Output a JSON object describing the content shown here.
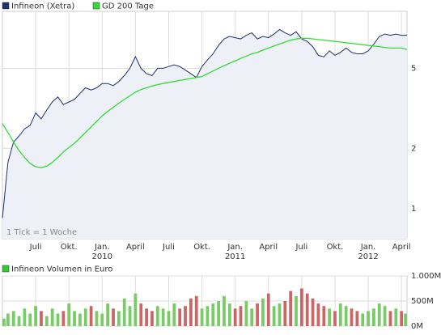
{
  "chart_data": [
    {
      "type": "line",
      "log_scale": true,
      "grid": true,
      "annotation": "1 Tick = 1 Woche",
      "fill_color": "#eef0f8",
      "categories": [
        null,
        null,
        null,
        null,
        null,
        null,
        "Juli",
        null,
        null,
        null,
        null,
        null,
        "Okt.",
        null,
        null,
        null,
        null,
        null,
        "Jan.",
        null,
        null,
        null,
        null,
        null,
        "April",
        null,
        null,
        null,
        null,
        null,
        "Juli",
        null,
        null,
        null,
        null,
        null,
        "Okt.",
        null,
        null,
        null,
        null,
        null,
        "Jan.",
        null,
        null,
        null,
        null,
        null,
        "April",
        null,
        null,
        null,
        null,
        null,
        "Juli",
        null,
        null,
        null,
        null,
        null,
        "Okt.",
        null,
        null,
        null,
        null,
        null,
        "Jan.",
        null,
        null,
        null,
        null,
        null,
        "April",
        null
      ],
      "category_years": [
        null,
        null,
        null,
        null,
        null,
        null,
        null,
        null,
        null,
        null,
        null,
        null,
        null,
        null,
        null,
        null,
        null,
        null,
        "2010",
        null,
        null,
        null,
        null,
        null,
        null,
        null,
        null,
        null,
        null,
        null,
        null,
        null,
        null,
        null,
        null,
        null,
        null,
        null,
        null,
        null,
        null,
        null,
        "2011",
        null,
        null,
        null,
        null,
        null,
        null,
        null,
        null,
        null,
        null,
        null,
        null,
        null,
        null,
        null,
        null,
        null,
        null,
        null,
        null,
        null,
        null,
        null,
        "2012",
        null,
        null,
        null,
        null,
        null,
        null,
        null
      ],
      "series": [
        {
          "name": "Infineon (Xetra)",
          "color": "#1f2f6b",
          "values": [
            0.9,
            1.7,
            2.15,
            2.3,
            2.5,
            2.6,
            3.0,
            2.8,
            3.1,
            3.4,
            3.6,
            3.3,
            3.4,
            3.5,
            3.75,
            4.0,
            3.9,
            4.0,
            4.2,
            4.2,
            4.1,
            4.3,
            4.6,
            5.0,
            5.7,
            5.0,
            4.7,
            4.6,
            5.0,
            5.0,
            5.1,
            5.2,
            5.1,
            4.9,
            4.7,
            4.5,
            5.1,
            5.5,
            5.9,
            6.5,
            7.0,
            7.2,
            7.1,
            7.0,
            7.3,
            7.5,
            7.0,
            7.2,
            7.1,
            7.4,
            7.8,
            7.5,
            7.3,
            7.6,
            7.0,
            6.8,
            6.4,
            5.8,
            5.7,
            6.1,
            5.8,
            6.0,
            6.3,
            6.0,
            5.9,
            5.9,
            6.1,
            6.6,
            7.2,
            7.4,
            7.3,
            7.4,
            7.3,
            7.3
          ]
        },
        {
          "name": "GD 200 Tage",
          "color": "#33dd33",
          "values": [
            2.65,
            2.4,
            2.15,
            1.95,
            1.8,
            1.68,
            1.62,
            1.6,
            1.63,
            1.7,
            1.8,
            1.92,
            2.02,
            2.12,
            2.25,
            2.4,
            2.55,
            2.72,
            2.9,
            3.05,
            3.2,
            3.35,
            3.5,
            3.65,
            3.8,
            3.92,
            4.0,
            4.08,
            4.15,
            4.2,
            4.25,
            4.3,
            4.35,
            4.4,
            4.45,
            4.5,
            4.55,
            4.7,
            4.85,
            5.0,
            5.15,
            5.3,
            5.45,
            5.6,
            5.75,
            5.9,
            6.0,
            6.15,
            6.3,
            6.45,
            6.6,
            6.75,
            6.9,
            7.0,
            7.05,
            7.05,
            7.0,
            6.95,
            6.9,
            6.85,
            6.8,
            6.75,
            6.7,
            6.65,
            6.6,
            6.55,
            6.5,
            6.45,
            6.4,
            6.35,
            6.3,
            6.3,
            6.3,
            6.2
          ]
        }
      ],
      "ylim": [
        0.71,
        9.6
      ],
      "yticks": [
        1,
        2,
        5
      ]
    },
    {
      "type": "bar",
      "title": "Infineon Volumen in Euro",
      "color": "#33cc33",
      "up_color": "#77cc66",
      "down_color": "#cc6666",
      "grid": true,
      "values": [
        150,
        250,
        300,
        200,
        350,
        250,
        400,
        300,
        200,
        350,
        250,
        300,
        450,
        300,
        250,
        350,
        400,
        300,
        250,
        450,
        350,
        300,
        550,
        400,
        650,
        450,
        350,
        300,
        400,
        350,
        300,
        450,
        350,
        400,
        550,
        600,
        350,
        400,
        450,
        500,
        600,
        450,
        350,
        400,
        500,
        350,
        450,
        550,
        650,
        400,
        450,
        500,
        700,
        600,
        750,
        650,
        550,
        450,
        400,
        350,
        300,
        450,
        400,
        350,
        300,
        250,
        300,
        350,
        450,
        400,
        300,
        350,
        300,
        250
      ],
      "ylim": [
        0,
        1000
      ],
      "yticks": [
        {
          "value": 0,
          "label": "0M"
        },
        {
          "value": 500,
          "label": "500M"
        },
        {
          "value": 1000,
          "label": "1.000M"
        }
      ]
    }
  ]
}
